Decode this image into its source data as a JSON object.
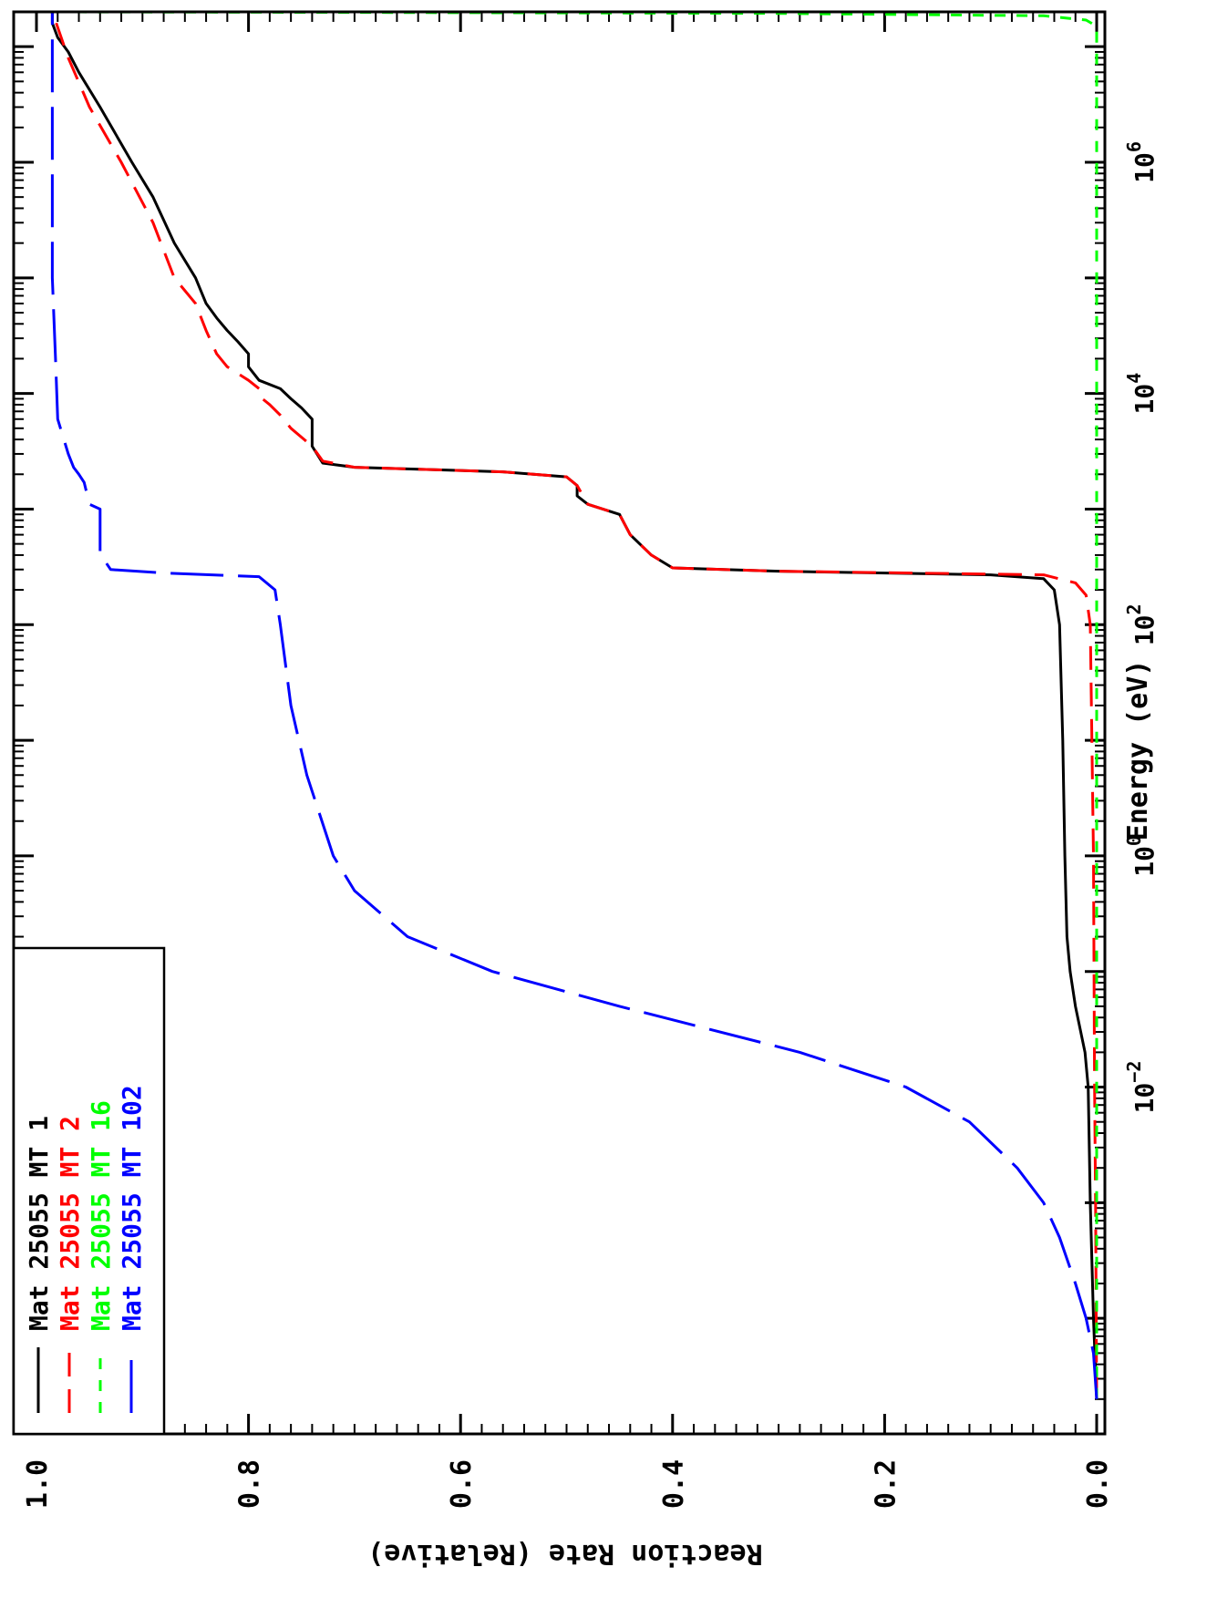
{
  "chart_data": {
    "type": "line",
    "xlabel": "Energy (eV)",
    "ylabel": "Reaction Rate (Relative)",
    "x_scale": "log",
    "xlim": [
      1e-05,
      20000000
    ],
    "ylim": [
      0.0,
      1.0
    ],
    "y_ticks": [
      "0.0",
      "0.2",
      "0.4",
      "0.6",
      "0.8",
      "1.0"
    ],
    "x_tick_labels": [
      {
        "value": 0.01,
        "base": "10",
        "exp": "−2"
      },
      {
        "value": 1,
        "base": "10",
        "exp": "0"
      },
      {
        "value": 100,
        "base": "10",
        "exp": "2"
      },
      {
        "value": 10000,
        "base": "10",
        "exp": "4"
      },
      {
        "value": 1000000,
        "base": "10",
        "exp": "6"
      }
    ],
    "legend": {
      "placement": "top-left",
      "entries": [
        {
          "mat_word": "Mat",
          "mat": "25055",
          "mt_word": "MT",
          "mt": "1",
          "color": "#000000"
        },
        {
          "mat_word": "Mat",
          "mat": "25055",
          "mt_word": "MT",
          "mt": "2",
          "color": "#ff0000"
        },
        {
          "mat_word": "Mat",
          "mat": "25055",
          "mt_word": "MT",
          "mt": "16",
          "color": "#00ff00"
        },
        {
          "mat_word": "Mat",
          "mat": "25055",
          "mt_word": "MT",
          "mt": "102",
          "color": "#0000ff"
        }
      ]
    },
    "series": [
      {
        "color": "#000000",
        "dash": "solid",
        "points": [
          [
            2e-05,
            0.0
          ],
          [
            0.0001,
            0.003
          ],
          [
            0.001,
            0.006
          ],
          [
            0.01,
            0.008
          ],
          [
            0.02,
            0.011
          ],
          [
            0.05,
            0.02
          ],
          [
            0.1,
            0.025
          ],
          [
            0.2,
            0.028
          ],
          [
            1,
            0.03
          ],
          [
            10,
            0.032
          ],
          [
            100,
            0.035
          ],
          [
            200,
            0.04
          ],
          [
            250,
            0.05
          ],
          [
            270,
            0.1
          ],
          [
            290,
            0.3
          ],
          [
            310,
            0.4
          ],
          [
            400,
            0.42
          ],
          [
            600,
            0.44
          ],
          [
            900,
            0.45
          ],
          [
            1100,
            0.48
          ],
          [
            1300,
            0.49
          ],
          [
            1600,
            0.49
          ],
          [
            1900,
            0.5
          ],
          [
            2100,
            0.56
          ],
          [
            2300,
            0.7
          ],
          [
            2500,
            0.73
          ],
          [
            3500,
            0.74
          ],
          [
            6000,
            0.74
          ],
          [
            7500,
            0.75
          ],
          [
            9000,
            0.76
          ],
          [
            11000,
            0.77
          ],
          [
            13000,
            0.79
          ],
          [
            17000,
            0.8
          ],
          [
            22000,
            0.8
          ],
          [
            28000,
            0.81
          ],
          [
            35000,
            0.82
          ],
          [
            45000,
            0.83
          ],
          [
            60000,
            0.84
          ],
          [
            100000,
            0.85
          ],
          [
            200000,
            0.87
          ],
          [
            500000,
            0.89
          ],
          [
            1000000,
            0.91
          ],
          [
            3000000,
            0.94
          ],
          [
            6000000,
            0.96
          ],
          [
            9000000,
            0.97
          ],
          [
            12000000,
            0.98
          ],
          [
            16000000,
            0.985
          ],
          [
            20000000,
            0.985
          ]
        ]
      },
      {
        "color": "#ff0000",
        "dash": "medium",
        "points": [
          [
            2e-05,
            0.0
          ],
          [
            0.001,
            0.001
          ],
          [
            0.01,
            0.002
          ],
          [
            1,
            0.003
          ],
          [
            100,
            0.006
          ],
          [
            180,
            0.01
          ],
          [
            230,
            0.02
          ],
          [
            270,
            0.05
          ],
          [
            290,
            0.3
          ],
          [
            310,
            0.4
          ],
          [
            400,
            0.42
          ],
          [
            600,
            0.44
          ],
          [
            900,
            0.45
          ],
          [
            1100,
            0.48
          ],
          [
            1600,
            0.49
          ],
          [
            1900,
            0.5
          ],
          [
            2100,
            0.56
          ],
          [
            2300,
            0.7
          ],
          [
            2600,
            0.73
          ],
          [
            3500,
            0.74
          ],
          [
            5000,
            0.76
          ],
          [
            6500,
            0.77
          ],
          [
            8000,
            0.78
          ],
          [
            9500,
            0.79
          ],
          [
            11000,
            0.79
          ],
          [
            13000,
            0.8
          ],
          [
            17000,
            0.82
          ],
          [
            22000,
            0.83
          ],
          [
            35000,
            0.84
          ],
          [
            60000,
            0.85
          ],
          [
            100000,
            0.87
          ],
          [
            300000,
            0.89
          ],
          [
            1000000,
            0.92
          ],
          [
            3000000,
            0.95
          ],
          [
            8000000,
            0.97
          ],
          [
            20000000,
            0.985
          ]
        ]
      },
      {
        "color": "#00ff00",
        "dash": "short",
        "points": [
          [
            2e-05,
            0.0
          ],
          [
            15000000,
            0.0
          ],
          [
            17000000,
            0.01
          ],
          [
            18500000,
            0.05
          ],
          [
            19400000,
            0.3
          ],
          [
            19800000,
            0.7
          ],
          [
            20000000,
            0.985
          ]
        ]
      },
      {
        "color": "#0000ff",
        "dash": "long",
        "points": [
          [
            2e-05,
            0.0
          ],
          [
            5e-05,
            0.003
          ],
          [
            0.0001,
            0.01
          ],
          [
            0.0002,
            0.02
          ],
          [
            0.0005,
            0.035
          ],
          [
            0.001,
            0.05
          ],
          [
            0.002,
            0.075
          ],
          [
            0.005,
            0.12
          ],
          [
            0.01,
            0.18
          ],
          [
            0.02,
            0.28
          ],
          [
            0.05,
            0.45
          ],
          [
            0.1,
            0.57
          ],
          [
            0.2,
            0.65
          ],
          [
            0.5,
            0.7
          ],
          [
            1,
            0.72
          ],
          [
            5,
            0.745
          ],
          [
            20,
            0.76
          ],
          [
            100,
            0.77
          ],
          [
            200,
            0.775
          ],
          [
            260,
            0.79
          ],
          [
            280,
            0.88
          ],
          [
            300,
            0.93
          ],
          [
            350,
            0.935
          ],
          [
            400,
            0.94
          ],
          [
            1000,
            0.94
          ],
          [
            1100,
            0.95
          ],
          [
            1700,
            0.955
          ],
          [
            2000,
            0.96
          ],
          [
            2300,
            0.965
          ],
          [
            3000,
            0.97
          ],
          [
            6000,
            0.98
          ],
          [
            20000,
            0.982
          ],
          [
            100000,
            0.985
          ],
          [
            20000000,
            0.985
          ]
        ]
      }
    ]
  }
}
